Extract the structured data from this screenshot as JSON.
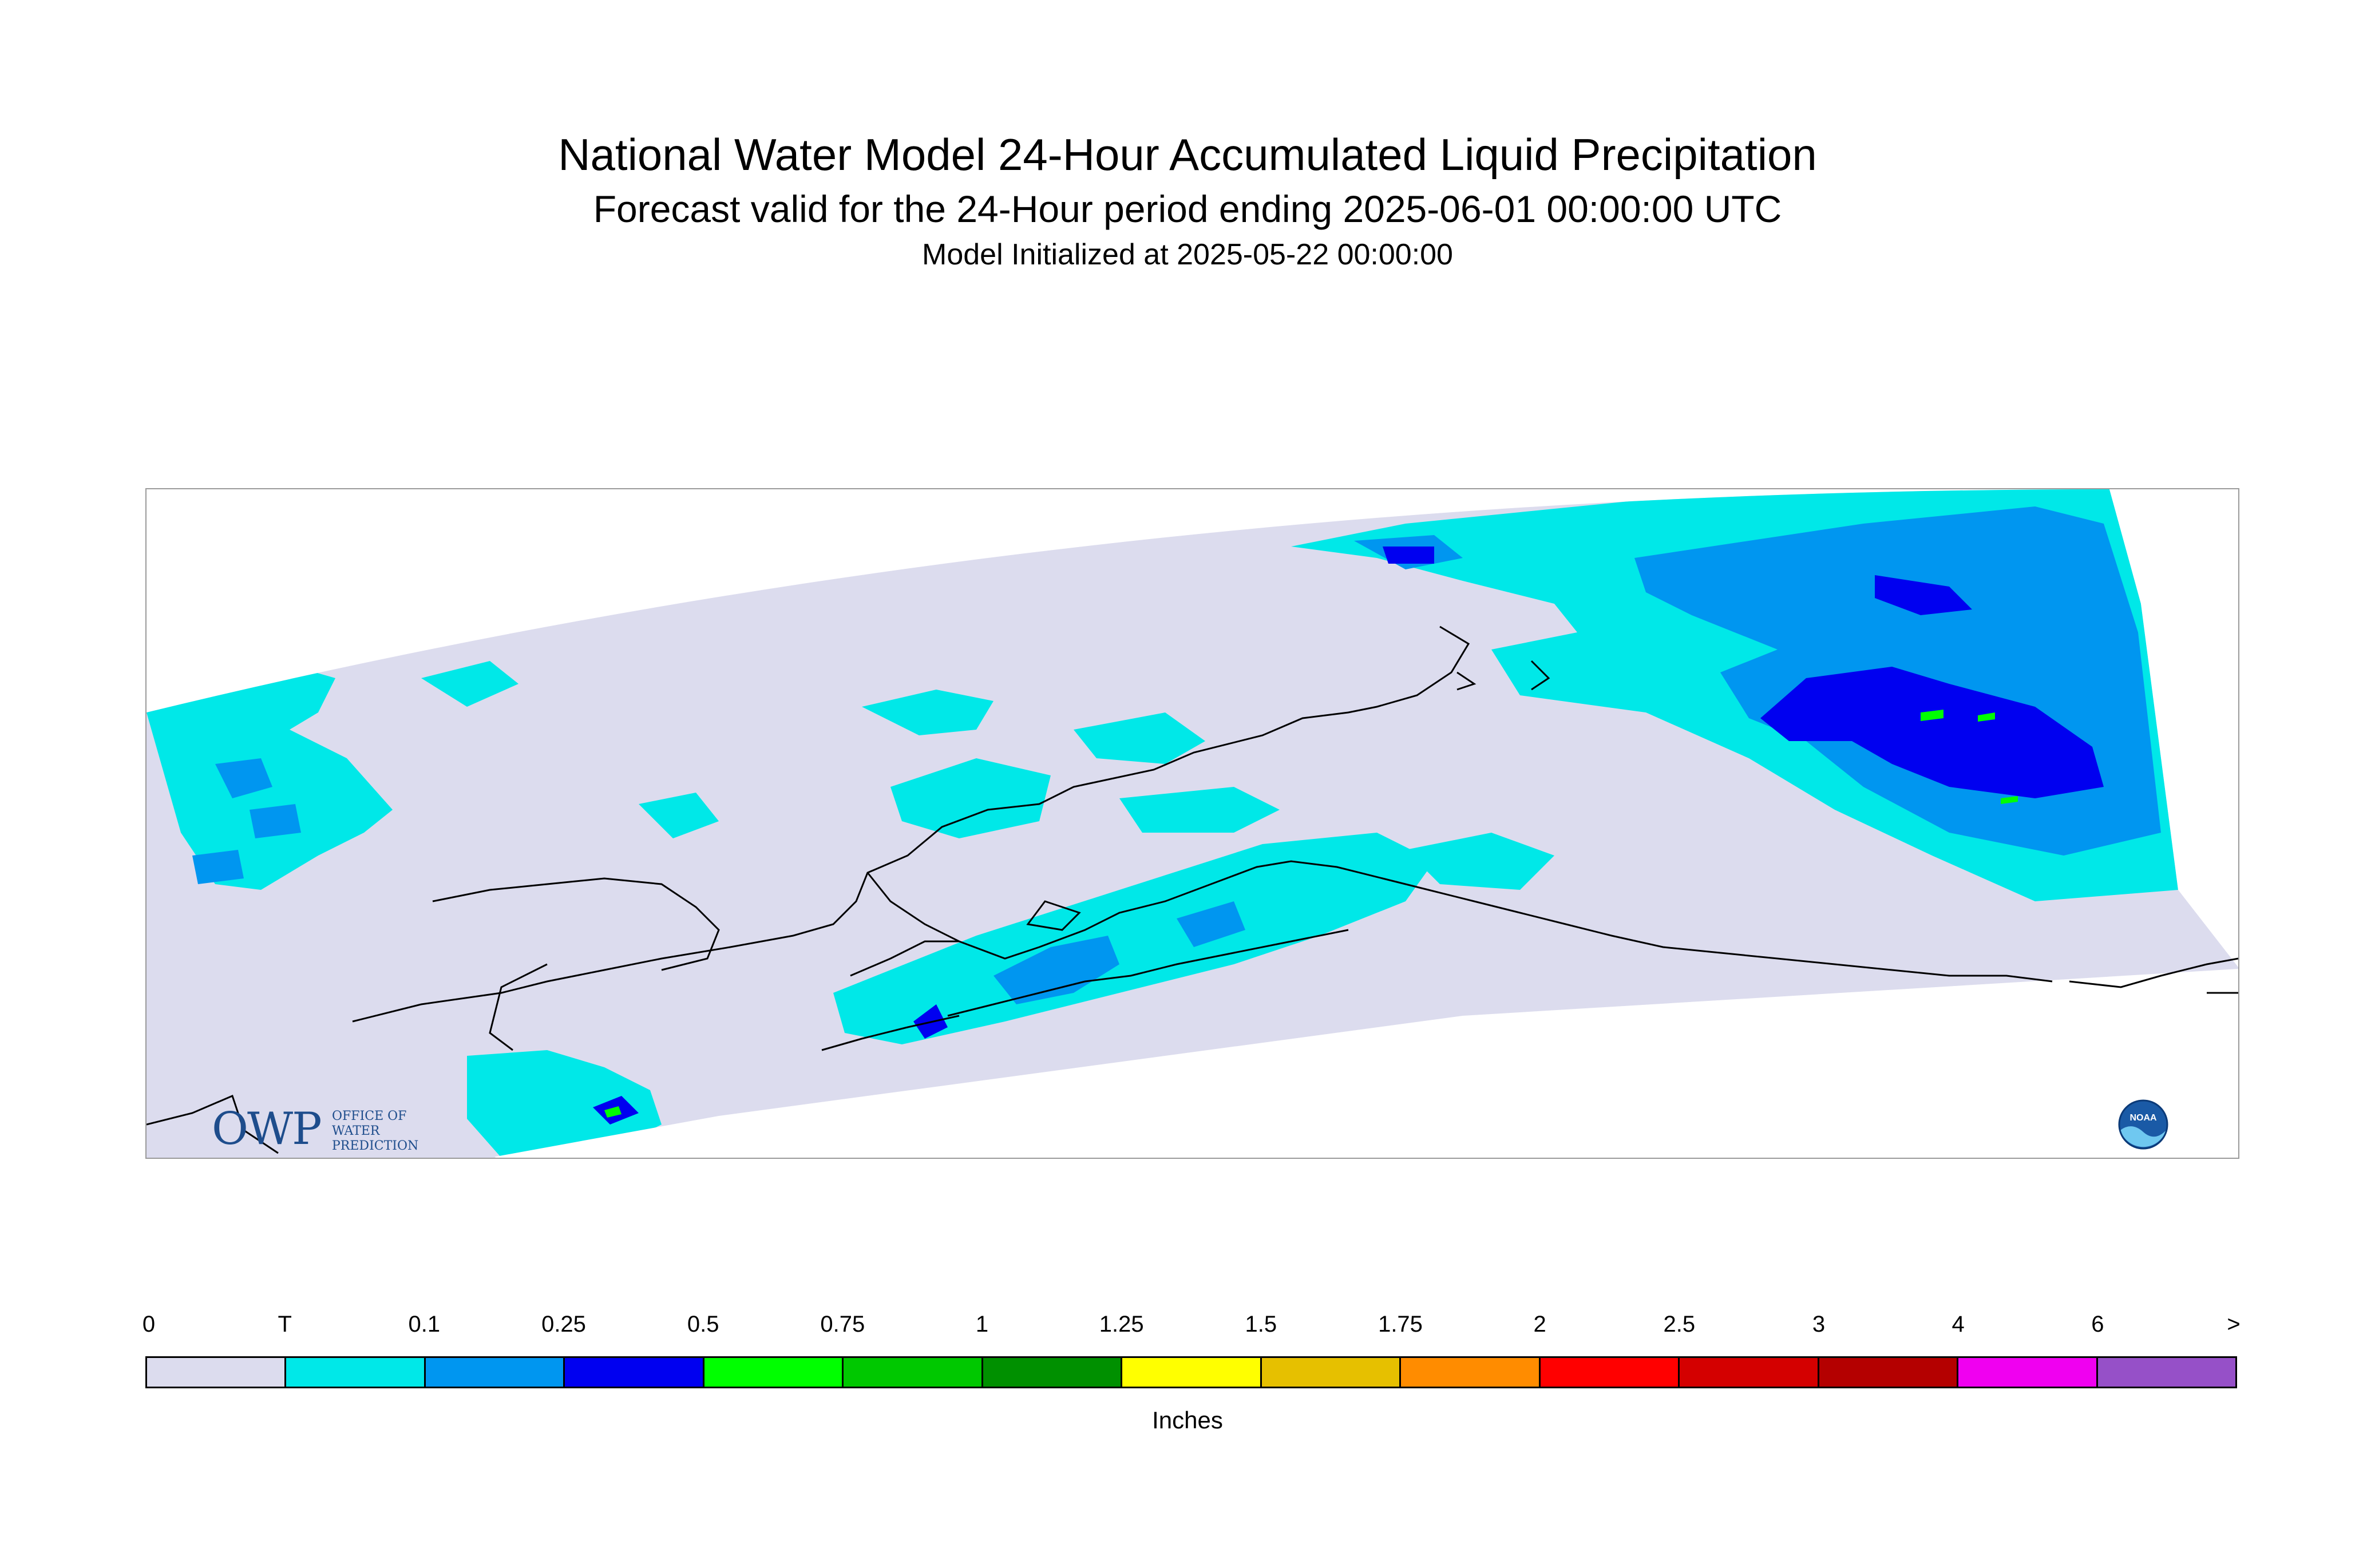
{
  "title": "National Water Model 24-Hour Accumulated Liquid Precipitation",
  "subtitle": "Forecast valid for the 24-Hour period ending 2025-06-01 00:00:00 UTC",
  "init_line": "Model Initialized at 2025-05-22 00:00:00",
  "logos": {
    "owp_mark": "OWP",
    "owp_text": [
      "OFFICE OF",
      "WATER",
      "PREDICTION"
    ],
    "noaa_text": "NOAA"
  },
  "legend": {
    "units": "Inches",
    "tick_labels": [
      "0",
      "T",
      "0.1",
      "0.25",
      "0.5",
      "0.75",
      "1",
      "1.25",
      "1.5",
      "1.75",
      "2",
      "2.5",
      "3",
      "4",
      "6",
      ">"
    ],
    "colors": [
      "#dcdcee",
      "#00e8e8",
      "#0096f0",
      "#0000f0",
      "#00ff00",
      "#00c800",
      "#009000",
      "#ffff00",
      "#e6c000",
      "#ff8c00",
      "#ff0000",
      "#d40000",
      "#b40000",
      "#f000f0",
      "#9650c8"
    ]
  },
  "map_colors": {
    "background_zero": "#dcdcee",
    "trace": "#00e8e8",
    "light": "#0096f0",
    "moderate": "#0000f0",
    "heavy": "#00ff00",
    "coastline": "#000000"
  }
}
